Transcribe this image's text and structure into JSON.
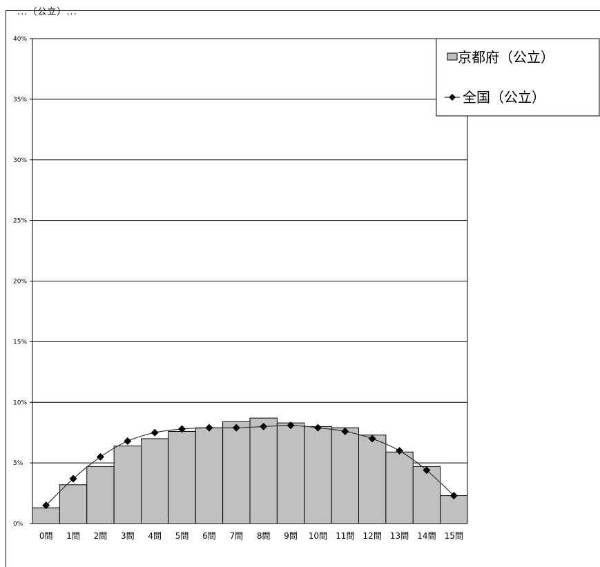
{
  "header": {
    "cropped_text": "...（公立）..."
  },
  "chart_data": {
    "type": "bar",
    "categories": [
      "0問",
      "1問",
      "2問",
      "3問",
      "4問",
      "5問",
      "6問",
      "7問",
      "8問",
      "9問",
      "10問",
      "11問",
      "12問",
      "13問",
      "14問",
      "15問"
    ],
    "y_tick_labels": [
      "0%",
      "5%",
      "10%",
      "15%",
      "20%",
      "25%",
      "30%",
      "35%",
      "40%"
    ],
    "ylim": [
      0,
      40
    ],
    "grid": true,
    "legend_placement": "top-right",
    "series": [
      {
        "name": "京都府（公立）",
        "kind": "bar",
        "color": "#c0c0c0",
        "values": [
          1.3,
          3.2,
          4.7,
          6.4,
          7.0,
          7.6,
          7.9,
          8.4,
          8.7,
          8.3,
          8.0,
          7.9,
          7.3,
          5.9,
          4.7,
          2.3
        ]
      },
      {
        "name": "全国（公立）",
        "kind": "line",
        "color": "#000000",
        "marker": "diamond",
        "values": [
          1.5,
          3.7,
          5.5,
          6.8,
          7.5,
          7.8,
          7.9,
          7.9,
          8.0,
          8.1,
          7.9,
          7.6,
          7.0,
          6.0,
          4.4,
          2.3
        ]
      }
    ]
  }
}
